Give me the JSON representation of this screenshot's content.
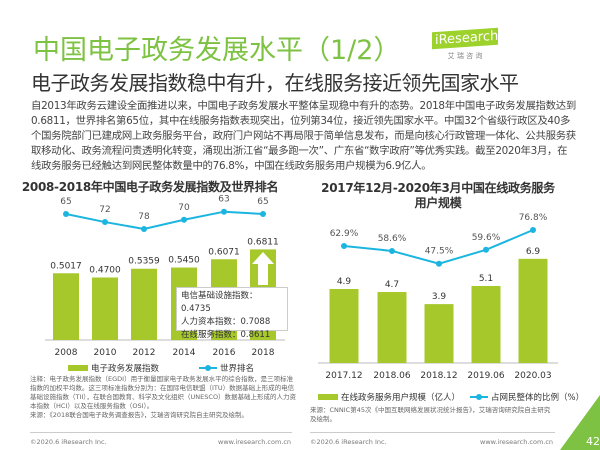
{
  "header": {
    "title": "中国电子政务发展水平（1/2）",
    "subtitle": "电子政务发展指数稳中有升，在线服务接近领先国家水平",
    "logo_text": "iResearch",
    "logo_sub": "艾 瑞 咨 询"
  },
  "intro": "自2013年政务云建设全面推进以来，中国电子政务发展水平整体呈现稳中有升的态势。2018年中国电子政务发展指数达到0.6811，世界排名第65位，其中在线服务指数表现突出，位列第34位，接近领先国家水平。中国32个省级行政区及40多个国务院部门已建成网上政务服务平台，政府门户网站不再局限于简单信息发布，而是向核心行政管理一体化、公共服务获取移动化、政务流程问责透明化转变，涌现出浙江省“最多跑一次”、广东省“数字政府”等优秀实践。截至2020年3月，在线政务服务已经触达到网民整体数量中的76.8%，中国在线政务服务用户规模为6.9亿人。",
  "colors": {
    "accent": "#7dc242",
    "bar": "#a6c82b",
    "line": "#1bb5e0"
  },
  "chart_data": [
    {
      "type": "bar",
      "title": "2008-2018年中国电子政务发展指数及世界排名",
      "categories": [
        "2008",
        "2010",
        "2012",
        "2014",
        "2016",
        "2018"
      ],
      "series": [
        {
          "name": "电子政务发展指数",
          "type": "bar",
          "values": [
            0.5017,
            0.47,
            0.5359,
            0.545,
            0.6071,
            0.6811
          ],
          "labels": [
            "0.5017",
            "0.4700",
            "0.5359",
            "0.5450",
            "0.6071",
            "0.6811"
          ]
        },
        {
          "name": "世界排名",
          "type": "line",
          "values": [
            65,
            72,
            78,
            70,
            63,
            65
          ],
          "labels": [
            "65",
            "72",
            "78",
            "70",
            "63",
            "65"
          ]
        }
      ],
      "annotation": [
        "电信基础设施指数：0.4735",
        "人力资本指数：0.7088",
        "在线服务指数：0.8611"
      ],
      "note": "注释：电子政务发展指数（EGDI）用于衡量国家电子政务发展水平的综合指数，是三项标准指数的加权平均数。这三项标准指数分别为：在国际电信联盟（ITU）数据基础上形成的电信基础设施指数（TII），在联合国教育、科学及文化组织（UNESCO）数据基础上形成的人力资本指数（HCI）以及在线服务指数（OSI）。",
      "source": "来源：《2018联合国电子政务调查报告》，艾瑞咨询研究院自主研究及绘制。"
    },
    {
      "type": "bar",
      "title": "2017年12月-2020年3月中国在线政务服务用户规模",
      "categories": [
        "2017.12",
        "2018.06",
        "2018.12",
        "2019.06",
        "2020.03"
      ],
      "series": [
        {
          "name": "在线政务服务用户规模（亿人）",
          "type": "bar",
          "values": [
            4.9,
            4.7,
            3.9,
            5.1,
            6.9
          ],
          "labels": [
            "4.9",
            "4.7",
            "3.9",
            "5.1",
            "6.9"
          ]
        },
        {
          "name": "占网民整体的比例（%）",
          "type": "line",
          "values": [
            62.9,
            58.6,
            47.5,
            59.6,
            76.8
          ],
          "labels": [
            "62.9%",
            "58.6%",
            "47.5%",
            "59.6%",
            "76.8%"
          ]
        }
      ],
      "source": "来源：CNNIC第45次《中国互联网络发展状况统计报告》，艾瑞咨询研究院自主研究及绘制。"
    }
  ],
  "footer": {
    "copyright": "©2020.6 iResearch Inc.",
    "url": "www.iresearch.com.cn",
    "page": "42"
  }
}
